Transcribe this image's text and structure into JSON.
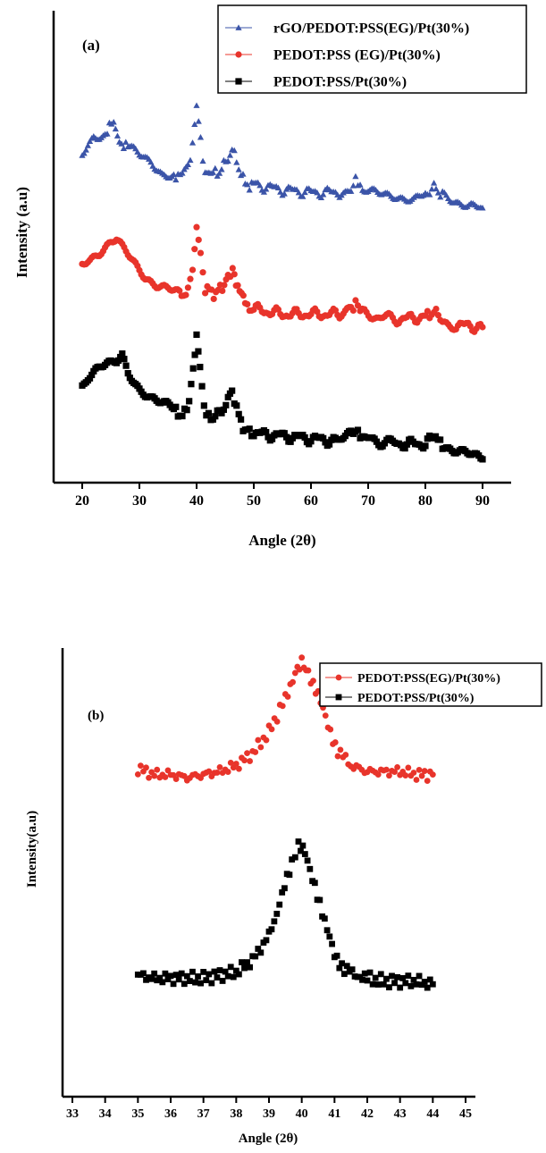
{
  "chart_data": [
    {
      "type": "scatter",
      "panel_label": "(a)",
      "xlabel": "Angle (2θ)",
      "ylabel": "Intensity (a.u)",
      "xlim": [
        15,
        95
      ],
      "xticks": [
        20,
        30,
        40,
        50,
        60,
        70,
        80,
        90
      ],
      "y_axis_numbered": false,
      "legend_position": "top-right",
      "series": [
        {
          "name": "rGO/PEDOT:PSS(EG)/Pt(30%)",
          "color": "#3b54a8",
          "marker": "triangle",
          "points": [
            [
              20,
              6.3
            ],
            [
              22,
              6.7
            ],
            [
              24,
              6.75
            ],
            [
              25.5,
              6.95
            ],
            [
              26.5,
              6.6
            ],
            [
              28,
              6.45
            ],
            [
              30,
              6.3
            ],
            [
              32,
              6.2
            ],
            [
              34,
              6.0
            ],
            [
              36,
              5.95
            ],
            [
              37.5,
              5.9
            ],
            [
              38.5,
              6.1
            ],
            [
              39.3,
              6.55
            ],
            [
              40,
              7.25
            ],
            [
              40.7,
              6.6
            ],
            [
              41.5,
              6.0
            ],
            [
              42.5,
              5.95
            ],
            [
              44,
              6.0
            ],
            [
              45.5,
              6.25
            ],
            [
              46.2,
              6.45
            ],
            [
              47,
              6.2
            ],
            [
              48.5,
              5.75
            ],
            [
              50,
              5.75
            ],
            [
              55,
              5.65
            ],
            [
              60,
              5.6
            ],
            [
              65,
              5.6
            ],
            [
              67,
              5.7
            ],
            [
              67.8,
              5.85
            ],
            [
              69,
              5.6
            ],
            [
              72,
              5.55
            ],
            [
              75,
              5.55
            ],
            [
              78,
              5.5
            ],
            [
              80,
              5.55
            ],
            [
              81.5,
              5.7
            ],
            [
              83,
              5.55
            ],
            [
              85,
              5.45
            ],
            [
              88,
              5.4
            ],
            [
              90,
              5.3
            ]
          ]
        },
        {
          "name": "PEDOT:PSS (EG)/Pt(30%)",
          "color": "#e8342b",
          "marker": "circle",
          "points": [
            [
              20,
              4.25
            ],
            [
              21,
              4.35
            ],
            [
              23,
              4.45
            ],
            [
              25,
              4.6
            ],
            [
              26,
              4.65
            ],
            [
              27,
              4.5
            ],
            [
              29,
              4.25
            ],
            [
              31,
              4.0
            ],
            [
              33,
              3.85
            ],
            [
              35,
              3.75
            ],
            [
              37,
              3.6
            ],
            [
              38.5,
              3.7
            ],
            [
              39.3,
              4.2
            ],
            [
              40,
              4.95
            ],
            [
              40.7,
              4.35
            ],
            [
              41.5,
              3.75
            ],
            [
              43,
              3.65
            ],
            [
              44.5,
              3.75
            ],
            [
              45.5,
              3.95
            ],
            [
              46.3,
              4.1
            ],
            [
              47.2,
              3.8
            ],
            [
              48.5,
              3.4
            ],
            [
              50,
              3.35
            ],
            [
              55,
              3.25
            ],
            [
              60,
              3.25
            ],
            [
              65,
              3.25
            ],
            [
              67,
              3.35
            ],
            [
              67.8,
              3.5
            ],
            [
              69,
              3.25
            ],
            [
              75,
              3.15
            ],
            [
              80,
              3.2
            ],
            [
              81.5,
              3.3
            ],
            [
              83,
              3.15
            ],
            [
              85,
              3.05
            ],
            [
              90,
              3.0
            ]
          ]
        },
        {
          "name": "PEDOT:PSS/Pt(30%)",
          "color": "#000000",
          "marker": "square",
          "points": [
            [
              20,
              1.9
            ],
            [
              21,
              2.05
            ],
            [
              23,
              2.2
            ],
            [
              25,
              2.25
            ],
            [
              26,
              2.3
            ],
            [
              27,
              2.45
            ],
            [
              28,
              2.15
            ],
            [
              30,
              1.85
            ],
            [
              32,
              1.65
            ],
            [
              34,
              1.5
            ],
            [
              36,
              1.4
            ],
            [
              37.5,
              1.3
            ],
            [
              38.7,
              1.5
            ],
            [
              39.4,
              2.1
            ],
            [
              40,
              2.9
            ],
            [
              40.6,
              2.2
            ],
            [
              41.3,
              1.45
            ],
            [
              42.5,
              1.25
            ],
            [
              44,
              1.35
            ],
            [
              45.5,
              1.55
            ],
            [
              46.2,
              1.75
            ],
            [
              47,
              1.4
            ],
            [
              48.5,
              1.0
            ],
            [
              50,
              0.95
            ],
            [
              55,
              0.9
            ],
            [
              60,
              0.85
            ],
            [
              65,
              0.8
            ],
            [
              67,
              0.9
            ],
            [
              67.8,
              1.05
            ],
            [
              69,
              0.85
            ],
            [
              75,
              0.75
            ],
            [
              80,
              0.75
            ],
            [
              81.8,
              0.9
            ],
            [
              83,
              0.75
            ],
            [
              85,
              0.6
            ],
            [
              88,
              0.5
            ],
            [
              90,
              0.45
            ]
          ]
        }
      ]
    },
    {
      "type": "scatter",
      "panel_label": "(b)",
      "xlabel": "Angle (2θ)",
      "ylabel": "Intensity(a.u)",
      "xlim": [
        32.7,
        45.3
      ],
      "xticks": [
        33,
        34,
        35,
        36,
        37,
        38,
        39,
        40,
        41,
        42,
        43,
        44,
        45
      ],
      "y_axis_numbered": false,
      "legend_position": "top-right",
      "series": [
        {
          "name": "PEDOT:PSS(EG)/Pt(30%)",
          "color": "#e8342b",
          "marker": "circle",
          "points": [
            [
              35,
              5.4
            ],
            [
              35.5,
              5.3
            ],
            [
              36,
              5.3
            ],
            [
              36.5,
              5.25
            ],
            [
              37,
              5.3
            ],
            [
              37.5,
              5.35
            ],
            [
              38,
              5.45
            ],
            [
              38.5,
              5.65
            ],
            [
              39,
              6.0
            ],
            [
              39.5,
              6.55
            ],
            [
              39.8,
              7.0
            ],
            [
              40,
              7.2
            ],
            [
              40.2,
              7.0
            ],
            [
              40.5,
              6.6
            ],
            [
              40.8,
              6.1
            ],
            [
              41.1,
              5.7
            ],
            [
              41.5,
              5.45
            ],
            [
              42,
              5.35
            ],
            [
              42.5,
              5.35
            ],
            [
              43,
              5.35
            ],
            [
              43.5,
              5.3
            ],
            [
              44,
              5.3
            ]
          ]
        },
        {
          "name": "PEDOT:PSS/Pt(30%)",
          "color": "#000000",
          "marker": "square",
          "points": [
            [
              35,
              2.0
            ],
            [
              35.5,
              1.95
            ],
            [
              36,
              1.95
            ],
            [
              36.5,
              1.95
            ],
            [
              37,
              1.95
            ],
            [
              37.5,
              2.0
            ],
            [
              38,
              2.05
            ],
            [
              38.5,
              2.25
            ],
            [
              39,
              2.65
            ],
            [
              39.4,
              3.3
            ],
            [
              39.7,
              3.85
            ],
            [
              39.9,
              4.15
            ],
            [
              40.1,
              4.0
            ],
            [
              40.4,
              3.5
            ],
            [
              40.7,
              2.85
            ],
            [
              41,
              2.35
            ],
            [
              41.3,
              2.1
            ],
            [
              41.7,
              2.0
            ],
            [
              42,
              1.95
            ],
            [
              42.5,
              1.9
            ],
            [
              43,
              1.9
            ],
            [
              43.5,
              1.9
            ],
            [
              44,
              1.85
            ]
          ]
        }
      ]
    }
  ]
}
